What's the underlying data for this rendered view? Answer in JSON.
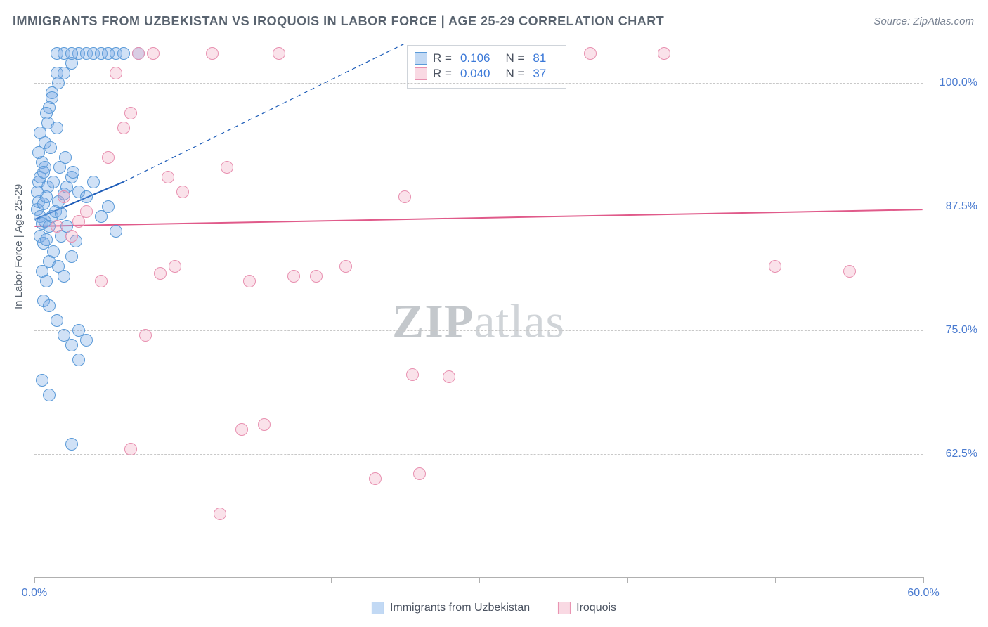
{
  "title": "IMMIGRANTS FROM UZBEKISTAN VS IROQUOIS IN LABOR FORCE | AGE 25-29 CORRELATION CHART",
  "source_label": "Source: ZipAtlas.com",
  "watermark": {
    "part1": "ZIP",
    "part2": "atlas"
  },
  "ylabel": "In Labor Force | Age 25-29",
  "chart": {
    "type": "scatter",
    "background_color": "#ffffff",
    "grid_color": "#c8c8c8",
    "axis_color": "#b0b0b0",
    "tick_label_color": "#4a7bd0",
    "tick_label_fontsize": 16,
    "xlim": [
      0.0,
      60.0
    ],
    "ylim": [
      50.0,
      104.0
    ],
    "ytick_values": [
      62.5,
      75.0,
      87.5,
      100.0
    ],
    "ytick_labels": [
      "62.5%",
      "75.0%",
      "87.5%",
      "100.0%"
    ],
    "xtick_values": [
      0.0,
      10.0,
      20.0,
      30.0,
      40.0,
      50.0,
      60.0
    ],
    "xlim_labels": {
      "min": "0.0%",
      "max": "60.0%"
    },
    "marker_size": 18,
    "series": {
      "blue": {
        "label": "Immigrants from Uzbekistan",
        "fill_color": "rgba(120,170,230,0.35)",
        "stroke_color": "#5a9ad8",
        "R": "0.106",
        "N": "81",
        "trend": {
          "x1": 0.0,
          "y1": 86.2,
          "x2": 6.0,
          "y2": 90.0,
          "dash_ext_x": 25.0,
          "dash_ext_y": 104.0,
          "color": "#1d5cb8",
          "width": 2
        },
        "points": [
          [
            0.2,
            87.2
          ],
          [
            0.3,
            88.0
          ],
          [
            0.4,
            86.5
          ],
          [
            0.5,
            85.8
          ],
          [
            0.6,
            87.8
          ],
          [
            0.7,
            86.0
          ],
          [
            0.8,
            88.5
          ],
          [
            0.3,
            90.0
          ],
          [
            0.5,
            92.0
          ],
          [
            0.7,
            94.0
          ],
          [
            0.9,
            96.0
          ],
          [
            1.0,
            97.5
          ],
          [
            1.2,
            99.0
          ],
          [
            1.5,
            101.0
          ],
          [
            0.4,
            84.5
          ],
          [
            0.6,
            83.8
          ],
          [
            0.8,
            84.2
          ],
          [
            1.0,
            85.5
          ],
          [
            1.2,
            86.5
          ],
          [
            1.4,
            87.0
          ],
          [
            1.6,
            88.0
          ],
          [
            1.8,
            86.8
          ],
          [
            2.0,
            88.8
          ],
          [
            2.2,
            89.5
          ],
          [
            2.5,
            90.5
          ],
          [
            3.0,
            89.0
          ],
          [
            3.5,
            88.5
          ],
          [
            4.0,
            90.0
          ],
          [
            0.5,
            81.0
          ],
          [
            0.8,
            80.0
          ],
          [
            1.0,
            82.0
          ],
          [
            1.3,
            83.0
          ],
          [
            1.6,
            81.5
          ],
          [
            2.0,
            80.5
          ],
          [
            2.5,
            82.5
          ],
          [
            0.6,
            78.0
          ],
          [
            1.0,
            77.5
          ],
          [
            1.5,
            76.0
          ],
          [
            2.0,
            74.5
          ],
          [
            2.5,
            73.5
          ],
          [
            3.0,
            75.0
          ],
          [
            0.4,
            95.0
          ],
          [
            0.8,
            97.0
          ],
          [
            1.2,
            98.5
          ],
          [
            1.6,
            100.0
          ],
          [
            2.0,
            101.0
          ],
          [
            2.5,
            102.0
          ],
          [
            3.0,
            103.0
          ],
          [
            1.5,
            103.0
          ],
          [
            2.0,
            103.0
          ],
          [
            2.5,
            103.0
          ],
          [
            3.5,
            103.0
          ],
          [
            4.0,
            103.0
          ],
          [
            4.5,
            103.0
          ],
          [
            5.0,
            103.0
          ],
          [
            5.5,
            103.0
          ],
          [
            6.0,
            103.0
          ],
          [
            7.0,
            103.0
          ],
          [
            0.3,
            93.0
          ],
          [
            0.7,
            91.5
          ],
          [
            1.1,
            93.5
          ],
          [
            1.5,
            95.5
          ],
          [
            0.5,
            70.0
          ],
          [
            1.0,
            68.5
          ],
          [
            2.5,
            63.5
          ],
          [
            3.0,
            72.0
          ],
          [
            3.5,
            74.0
          ],
          [
            4.5,
            86.5
          ],
          [
            5.0,
            87.5
          ],
          [
            5.5,
            85.0
          ],
          [
            1.8,
            84.5
          ],
          [
            2.2,
            85.5
          ],
          [
            2.8,
            84.0
          ],
          [
            0.2,
            89.0
          ],
          [
            0.4,
            90.5
          ],
          [
            0.6,
            91.0
          ],
          [
            0.9,
            89.5
          ],
          [
            1.3,
            90.0
          ],
          [
            1.7,
            91.5
          ],
          [
            2.1,
            92.5
          ],
          [
            2.6,
            91.0
          ]
        ]
      },
      "pink": {
        "label": "Iroquois",
        "fill_color": "rgba(240,160,185,0.30)",
        "stroke_color": "#e890b0",
        "R": "0.040",
        "N": "37",
        "trend": {
          "x1": 0.0,
          "y1": 85.5,
          "x2": 60.0,
          "y2": 87.2,
          "color": "#e05a8a",
          "width": 2
        },
        "points": [
          [
            1.5,
            85.5
          ],
          [
            2.0,
            88.5
          ],
          [
            2.5,
            84.5
          ],
          [
            3.0,
            86.0
          ],
          [
            3.5,
            87.0
          ],
          [
            5.0,
            92.5
          ],
          [
            6.0,
            95.5
          ],
          [
            6.5,
            97.0
          ],
          [
            7.0,
            103.0
          ],
          [
            8.0,
            103.0
          ],
          [
            9.0,
            90.5
          ],
          [
            10.0,
            89.0
          ],
          [
            12.0,
            103.0
          ],
          [
            13.0,
            91.5
          ],
          [
            16.5,
            103.0
          ],
          [
            17.5,
            80.5
          ],
          [
            5.5,
            101.0
          ],
          [
            6.5,
            63.0
          ],
          [
            7.5,
            74.5
          ],
          [
            4.5,
            80.0
          ],
          [
            8.5,
            80.8
          ],
          [
            9.5,
            81.5
          ],
          [
            12.5,
            56.5
          ],
          [
            14.0,
            65.0
          ],
          [
            19.0,
            80.5
          ],
          [
            21.0,
            81.5
          ],
          [
            23.0,
            60.0
          ],
          [
            25.0,
            88.5
          ],
          [
            25.5,
            70.5
          ],
          [
            26.0,
            60.5
          ],
          [
            37.5,
            103.0
          ],
          [
            42.5,
            103.0
          ],
          [
            50.0,
            81.5
          ],
          [
            55.0,
            81.0
          ],
          [
            14.5,
            80.0
          ],
          [
            15.5,
            65.5
          ],
          [
            28.0,
            70.3
          ]
        ]
      }
    },
    "stats_box_labels": {
      "R": "R =",
      "N": "N ="
    }
  },
  "bottom_legend": [
    {
      "key": "blue",
      "label": "Immigrants from Uzbekistan"
    },
    {
      "key": "pink",
      "label": "Iroquois"
    }
  ]
}
